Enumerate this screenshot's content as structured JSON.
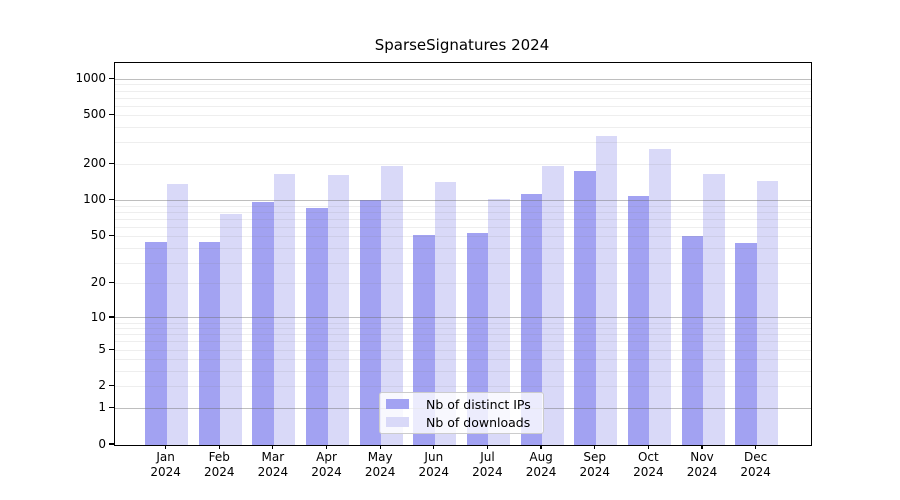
{
  "chart_data": {
    "type": "bar",
    "title": "SparseSignatures 2024",
    "categories": [
      "Jan",
      "Feb",
      "Mar",
      "Apr",
      "May",
      "Jun",
      "Jul",
      "Aug",
      "Sep",
      "Oct",
      "Nov",
      "Dec"
    ],
    "year_label": "2024",
    "series": [
      {
        "name": "Nb of distinct IPs",
        "color": "#a2a2f2",
        "values": [
          45,
          45,
          98,
          87,
          101,
          52,
          54,
          114,
          176,
          109,
          51,
          44
        ]
      },
      {
        "name": "Nb of downloads",
        "color": "#d9d9f8",
        "values": [
          138,
          78,
          166,
          163,
          193,
          143,
          103,
          193,
          342,
          267,
          166,
          145
        ]
      }
    ],
    "yticks": [
      0,
      1,
      2,
      5,
      10,
      20,
      50,
      100,
      200,
      500,
      1000
    ],
    "minor_gridline_values": [
      2,
      3,
      4,
      5,
      6,
      7,
      8,
      9,
      20,
      30,
      40,
      50,
      60,
      70,
      80,
      90,
      200,
      300,
      400,
      500,
      600,
      700,
      800,
      900
    ],
    "major_gridline_values": [
      1,
      10,
      100,
      1000
    ],
    "scale": "log1p",
    "ylim": [
      0,
      1360
    ],
    "grid": "on",
    "legend_position": "lower-center",
    "colors": {
      "spine": "#000000",
      "background": "#ffffff",
      "major_grid": "#c6c6c6",
      "minor_grid": "#efefef"
    }
  }
}
